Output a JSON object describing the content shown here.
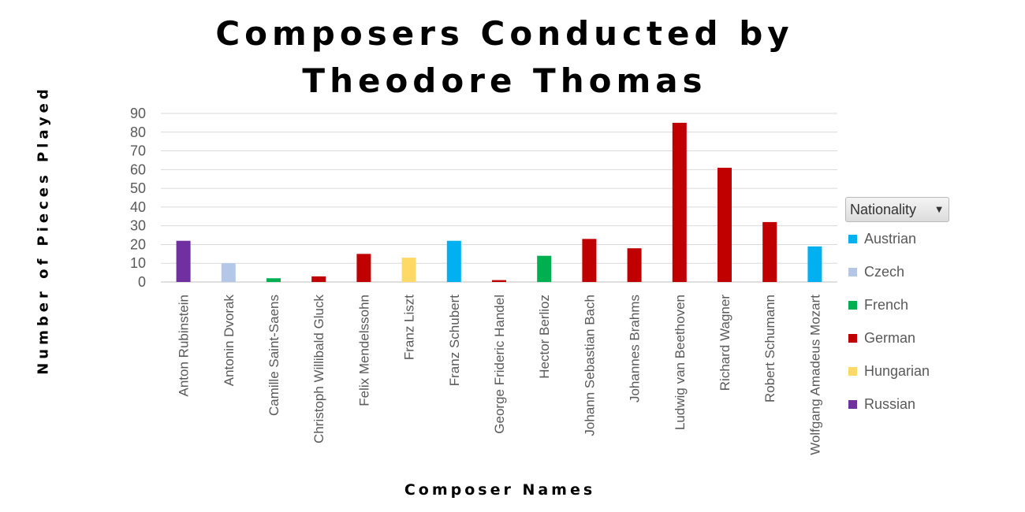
{
  "chart_data": {
    "type": "bar",
    "title_lines": [
      "Composers Conducted by",
      "Theodore Thomas"
    ],
    "xlabel": "Composer Names",
    "ylabel": "Number of Pieces Played",
    "ylim": [
      0,
      90
    ],
    "y_ticks": [
      0,
      10,
      20,
      30,
      40,
      50,
      60,
      70,
      80,
      90
    ],
    "grid": true,
    "legend": {
      "title": "Nationality",
      "placement": "right",
      "entries": [
        {
          "name": "Austrian",
          "color": "#00B0F0"
        },
        {
          "name": "Czech",
          "color": "#B4C7E7"
        },
        {
          "name": "French",
          "color": "#00B050"
        },
        {
          "name": "German",
          "color": "#C00000"
        },
        {
          "name": "Hungarian",
          "color": "#FFD966"
        },
        {
          "name": "Russian",
          "color": "#7030A0"
        }
      ]
    },
    "categories": [
      "Anton Rubinstein",
      "Antonin Dvorak",
      "Camille Saint-Saens",
      "Christoph Willibald Gluck",
      "Felix Mendelssohn",
      "Franz Liszt",
      "Franz Schubert",
      "George Frideric Handel",
      "Hector Berlioz",
      "Johann Sebastian Bach",
      "Johannes Brahms",
      "Ludwig van Beethoven",
      "Richard Wagner",
      "Robert Schumann",
      "Wolfgang Amadeus Mozart"
    ],
    "values": [
      22,
      10,
      2,
      3,
      15,
      13,
      22,
      1,
      14,
      23,
      18,
      85,
      61,
      32,
      19
    ],
    "nationality": [
      "Russian",
      "Czech",
      "French",
      "German",
      "German",
      "Hungarian",
      "Austrian",
      "German",
      "French",
      "German",
      "German",
      "German",
      "German",
      "German",
      "Austrian"
    ]
  }
}
